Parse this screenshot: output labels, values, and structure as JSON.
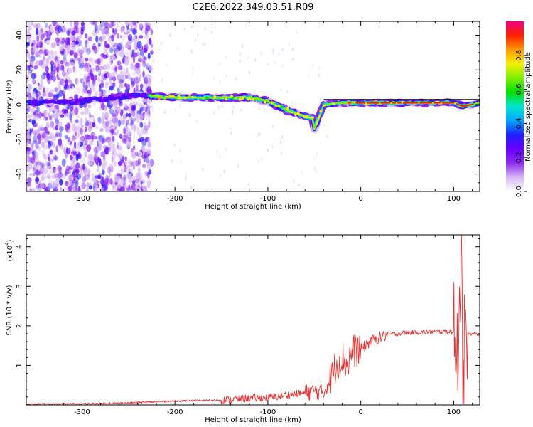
{
  "figure": {
    "title": "C2E6.2022.349.03.51.R09"
  },
  "chart_data": [
    {
      "type": "heatmap",
      "xlabel": "Height of straight line (km)",
      "ylabel": "Frequency (Hz)",
      "xlim": [
        -360,
        128
      ],
      "ylim": [
        -50,
        48
      ],
      "x_ticks": [
        "-300",
        "-200",
        "-100",
        "0",
        "100"
      ],
      "x_tick_values": [
        -300,
        -200,
        -100,
        0,
        100
      ],
      "y_ticks": [
        "40",
        "20",
        "0",
        "-20",
        "-40"
      ],
      "y_tick_values": [
        40,
        20,
        0,
        -20,
        -40
      ],
      "ridge": [
        {
          "x": -355,
          "y": 1
        },
        {
          "x": -300,
          "y": 2
        },
        {
          "x": -250,
          "y": 5
        },
        {
          "x": -225,
          "y": 5
        },
        {
          "x": -200,
          "y": 4
        },
        {
          "x": -150,
          "y": 4
        },
        {
          "x": -120,
          "y": 4
        },
        {
          "x": -100,
          "y": 2
        },
        {
          "x": -80,
          "y": -3
        },
        {
          "x": -60,
          "y": -7
        },
        {
          "x": -52,
          "y": -8
        },
        {
          "x": -50,
          "y": -14
        },
        {
          "x": -45,
          "y": -7
        },
        {
          "x": -40,
          "y": 0
        },
        {
          "x": -20,
          "y": 1
        },
        {
          "x": 0,
          "y": 1
        },
        {
          "x": 50,
          "y": 1
        },
        {
          "x": 100,
          "y": 1
        },
        {
          "x": 110,
          "y": -1
        },
        {
          "x": 128,
          "y": 1
        }
      ],
      "colorbar": {
        "label": "Normalized spectral amplitude",
        "range": [
          0,
          1
        ],
        "ticks": [
          "0.0",
          "0.2",
          "0.4",
          "0.6",
          "0.8"
        ],
        "tick_values": [
          0,
          0.2,
          0.4,
          0.6,
          0.8
        ],
        "colors": [
          "#ffffff",
          "#d7b8f5",
          "#8e2cf0",
          "#6a00ff",
          "#1f1fff",
          "#00a8ff",
          "#00e6d0",
          "#00e000",
          "#7cf000",
          "#f5f000",
          "#ff9a00",
          "#ff2000",
          "#f00080"
        ]
      }
    },
    {
      "type": "line",
      "xlabel": "Height of straight line (km)",
      "ylabel": "SNR (10 * v/v)",
      "y_scale_label": "(x10",
      "y_scale_exp": "4",
      "y_scale_close": ")",
      "xlim": [
        -360,
        128
      ],
      "ylim": [
        0,
        4.3
      ],
      "x_ticks": [
        "-300",
        "-200",
        "-100",
        "0",
        "100"
      ],
      "x_tick_values": [
        -300,
        -200,
        -100,
        0,
        100
      ],
      "y_ticks": [
        "1",
        "2",
        "3",
        "4"
      ],
      "y_tick_values": [
        1,
        2,
        3,
        4
      ],
      "color": "#e83030",
      "series": [
        {
          "x": [
            -360,
            -300,
            -250,
            -200,
            -150,
            -120,
            -100,
            -80,
            -60,
            -50,
            -40,
            -30,
            -25,
            -20,
            -15,
            -10,
            -5,
            0,
            10,
            20,
            30,
            40,
            50,
            60,
            70,
            80,
            90,
            100,
            103,
            105,
            107,
            108,
            110,
            112,
            115,
            120,
            128
          ],
          "y": [
            0.02,
            0.03,
            0.05,
            0.1,
            0.12,
            0.17,
            0.18,
            0.25,
            0.3,
            0.35,
            0.3,
            0.8,
            1.1,
            1.2,
            1.0,
            1.3,
            1.4,
            1.4,
            1.6,
            1.7,
            1.78,
            1.8,
            1.83,
            1.84,
            1.84,
            1.85,
            1.86,
            1.85,
            1.8,
            1.5,
            2.1,
            4.3,
            0.3,
            1.8,
            1.8,
            1.8,
            1.78
          ]
        }
      ]
    }
  ]
}
